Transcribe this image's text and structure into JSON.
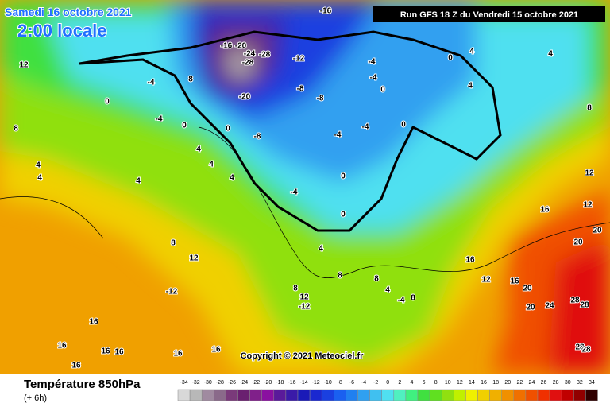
{
  "header": {
    "date": "Samedi 16 octobre 2021",
    "time": "2:00 locale",
    "run": "Run GFS 18 Z du Vendredi 15 octobre 2021"
  },
  "copyright": "Copyright © 2021 Meteociel.fr",
  "legend": {
    "title": "Température 850hPa",
    "subtitle": "(+ 6h)",
    "scale": [
      -34,
      -32,
      -30,
      -28,
      -26,
      -24,
      -22,
      -20,
      -18,
      -16,
      -14,
      -12,
      -10,
      -8,
      -6,
      -4,
      -2,
      0,
      2,
      4,
      6,
      8,
      10,
      12,
      14,
      16,
      18,
      20,
      22,
      24,
      26,
      28,
      30,
      32,
      34
    ],
    "colors": [
      "#d8d8d8",
      "#b8b8b8",
      "#a08aa0",
      "#8a6a8a",
      "#7a3a7a",
      "#6a2070",
      "#80208a",
      "#8a10a0",
      "#5a1a9a",
      "#3a1aa8",
      "#1a1ab8",
      "#1a28d0",
      "#1a40e0",
      "#1a60f0",
      "#2080f0",
      "#30a0f0",
      "#40c0f0",
      "#50e0f0",
      "#50f0c0",
      "#40f080",
      "#40e040",
      "#60e020",
      "#90e010",
      "#c0f000",
      "#f0f000",
      "#f0d000",
      "#f0b000",
      "#f09000",
      "#f07000",
      "#f05000",
      "#f03000",
      "#e01010",
      "#c00000",
      "#900000",
      "#300000"
    ]
  },
  "map": {
    "contour_labels": [
      -16,
      -16,
      -20,
      -24,
      -28,
      -28,
      -12,
      -8,
      -8,
      -20,
      -4,
      0,
      8,
      0,
      -4,
      -4,
      -4,
      0,
      0,
      4,
      -8,
      -4,
      0,
      0,
      -4,
      0,
      -4,
      0,
      4,
      4,
      4,
      4,
      4,
      4,
      8,
      12,
      4,
      4,
      8,
      12,
      16,
      20,
      20,
      12,
      12,
      16,
      16,
      20,
      20,
      24,
      28,
      28,
      28,
      28,
      8,
      12,
      -12,
      8,
      12,
      -12,
      8,
      4,
      8,
      16,
      16,
      16,
      16,
      16,
      16,
      16,
      4,
      -4,
      8
    ]
  }
}
